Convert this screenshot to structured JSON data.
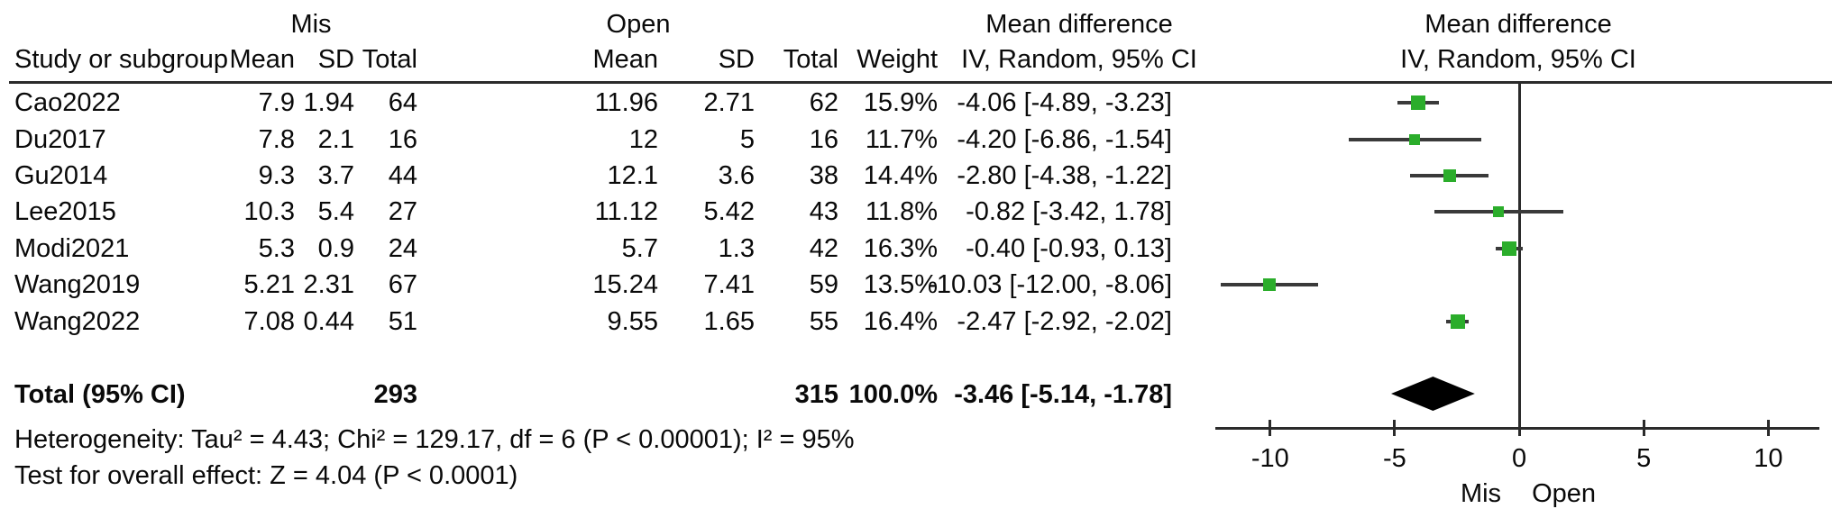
{
  "header": {
    "group1_label": "Mis",
    "group2_label": "Open",
    "study_col": "Study or subgroup",
    "mean_col": "Mean",
    "sd_col": "SD",
    "total_col": "Total",
    "weight_col": "Weight",
    "md_col_line1": "Mean difference",
    "md_col_line2": "IV, Random, 95% CI",
    "plot_col_line1": "Mean difference",
    "plot_col_line2": "IV, Random, 95% CI"
  },
  "rows": [
    {
      "study": "Cao2022",
      "mis_mean": "7.9",
      "mis_sd": "1.94",
      "mis_total": "64",
      "open_mean": "11.96",
      "open_sd": "2.71",
      "open_total": "62",
      "weight": "15.9%",
      "ci": "-4.06 [-4.89, -3.23]"
    },
    {
      "study": "Du2017",
      "mis_mean": "7.8",
      "mis_sd": "2.1",
      "mis_total": "16",
      "open_mean": "12",
      "open_sd": "5",
      "open_total": "16",
      "weight": "11.7%",
      "ci": "-4.20 [-6.86, -1.54]"
    },
    {
      "study": "Gu2014",
      "mis_mean": "9.3",
      "mis_sd": "3.7",
      "mis_total": "44",
      "open_mean": "12.1",
      "open_sd": "3.6",
      "open_total": "38",
      "weight": "14.4%",
      "ci": "-2.80 [-4.38, -1.22]"
    },
    {
      "study": "Lee2015",
      "mis_mean": "10.3",
      "mis_sd": "5.4",
      "mis_total": "27",
      "open_mean": "11.12",
      "open_sd": "5.42",
      "open_total": "43",
      "weight": "11.8%",
      "ci": "-0.82 [-3.42, 1.78]"
    },
    {
      "study": "Modi2021",
      "mis_mean": "5.3",
      "mis_sd": "0.9",
      "mis_total": "24",
      "open_mean": "5.7",
      "open_sd": "1.3",
      "open_total": "42",
      "weight": "16.3%",
      "ci": "-0.40 [-0.93, 0.13]"
    },
    {
      "study": "Wang2019",
      "mis_mean": "5.21",
      "mis_sd": "2.31",
      "mis_total": "67",
      "open_mean": "15.24",
      "open_sd": "7.41",
      "open_total": "59",
      "weight": "13.5%",
      "ci": "-10.03 [-12.00, -8.06]"
    },
    {
      "study": "Wang2022",
      "mis_mean": "7.08",
      "mis_sd": "0.44",
      "mis_total": "51",
      "open_mean": "9.55",
      "open_sd": "1.65",
      "open_total": "55",
      "weight": "16.4%",
      "ci": "-2.47 [-2.92, -2.02]"
    }
  ],
  "total_row": {
    "label": "Total (95% CI)",
    "mis_total": "293",
    "open_total": "315",
    "weight": "100.0%",
    "ci": "-3.46 [-5.14, -1.78]"
  },
  "footer": {
    "heterogeneity": "Heterogeneity: Tau² = 4.43; Chi² = 129.17, df = 6 (P < 0.00001); I² = 95%",
    "overall_effect": "Test for overall effect: Z = 4.04 (P < 0.0001)"
  },
  "chart_data": {
    "type": "forest",
    "title": "Mean difference IV, Random, 95% CI",
    "xlabel": "",
    "xlim": [
      -12.2,
      12.05
    ],
    "axis_ticks": [
      -10,
      -5,
      0,
      5,
      10
    ],
    "axis_tick_labels": [
      "-10",
      "-5",
      "0",
      "5",
      "10"
    ],
    "favours_left_label": "Mis",
    "favours_right_label": "Open",
    "marker_color": "#2BAD2B",
    "ci_line_color": "#3a3a3a",
    "diamond_color": "#000000",
    "studies": [
      {
        "name": "Cao2022",
        "md": -4.06,
        "ci_low": -4.89,
        "ci_high": -3.23,
        "weight": 15.9
      },
      {
        "name": "Du2017",
        "md": -4.2,
        "ci_low": -6.86,
        "ci_high": -1.54,
        "weight": 11.7
      },
      {
        "name": "Gu2014",
        "md": -2.8,
        "ci_low": -4.38,
        "ci_high": -1.22,
        "weight": 14.4
      },
      {
        "name": "Lee2015",
        "md": -0.82,
        "ci_low": -3.42,
        "ci_high": 1.78,
        "weight": 11.8
      },
      {
        "name": "Modi2021",
        "md": -0.4,
        "ci_low": -0.93,
        "ci_high": 0.13,
        "weight": 16.3
      },
      {
        "name": "Wang2019",
        "md": -10.03,
        "ci_low": -12.0,
        "ci_high": -8.06,
        "weight": 13.5
      },
      {
        "name": "Wang2022",
        "md": -2.47,
        "ci_low": -2.92,
        "ci_high": -2.02,
        "weight": 16.4
      }
    ],
    "total": {
      "md": -3.46,
      "ci_low": -5.14,
      "ci_high": -1.78
    }
  }
}
